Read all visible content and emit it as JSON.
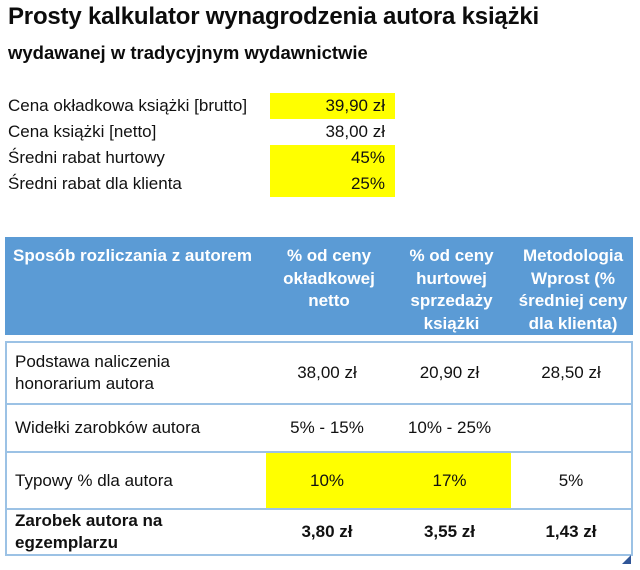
{
  "title": {
    "line1": "Prosty kalkulator wynagrodzenia autora książki",
    "line2": "wydawanej w tradycyjnym wydawnictwie"
  },
  "inputs": {
    "rows": [
      {
        "label": "Cena okładkowa książki [brutto]",
        "value": "39,90 zł",
        "highlighted": true
      },
      {
        "label": "Cena książki [netto]",
        "value": "38,00 zł",
        "highlighted": false
      },
      {
        "label": "Średni rabat hurtowy",
        "value": "45%",
        "highlighted": true
      },
      {
        "label": "Średni rabat dla klienta",
        "value": "25%",
        "highlighted": true
      }
    ]
  },
  "table": {
    "header": {
      "col0": "Sposób rozliczania z autorem",
      "col1": "% od ceny okładkowej netto",
      "col2": "% od ceny hurtowej sprzedaży książki",
      "col3": "Metodologia Wprost (% średniej ceny dla klienta)"
    },
    "rows": [
      {
        "label": "Podstawa naliczenia honorarium autora",
        "v1": "38,00 zł",
        "v2": "20,90 zł",
        "v3": "28,50 zł",
        "bold": false,
        "highlighted": []
      },
      {
        "label": "Widełki zarobków autora",
        "v1": "5% - 15%",
        "v2": "10% - 25%",
        "v3": "",
        "bold": false,
        "highlighted": []
      },
      {
        "label": "Typowy % dla autora",
        "v1": "10%",
        "v2": "17%",
        "v3": "5%",
        "bold": false,
        "highlighted": [
          "v1",
          "v2"
        ]
      },
      {
        "label": "Zarobek autora na egzemplarzu",
        "v1": "3,80 zł",
        "v2": "3,55 zł",
        "v3": "1,43 zł",
        "bold": true,
        "highlighted": []
      }
    ]
  },
  "colors": {
    "header_bg": "#5B9BD5",
    "header_text": "#FFFFFF",
    "highlight": "#FFFF00",
    "border": "#9CC2E5",
    "handle": "#2F5597"
  }
}
